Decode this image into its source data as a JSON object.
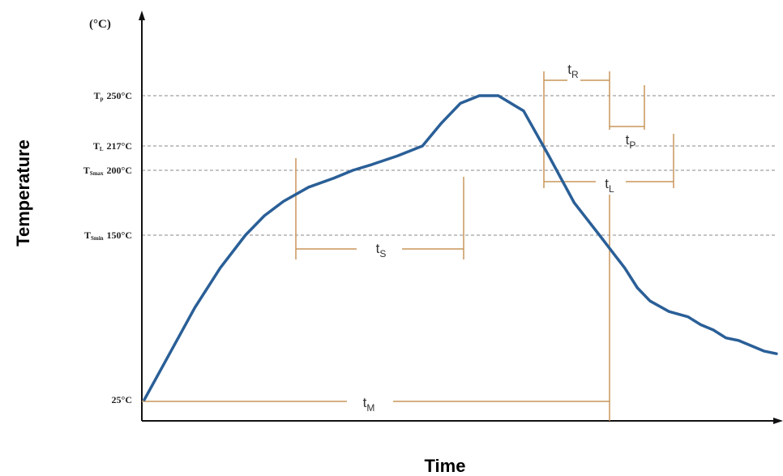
{
  "chart_data": {
    "type": "line",
    "title": "",
    "xlabel": "Time",
    "ylabel": "Temperature",
    "y_unit_label": "(°C)",
    "grid": "dashed reference lines at key temperatures",
    "colors": {
      "curve": "#2a5f97",
      "markers": "#c9955a",
      "grid": "#8a8a8a",
      "axis": "#111111"
    },
    "y_reference_lines": [
      {
        "symbol": "T",
        "sub": "p",
        "value_label": "250°C",
        "value": 250
      },
      {
        "symbol": "T",
        "sub": "L",
        "value_label": "217°C",
        "value": 217
      },
      {
        "symbol": "T",
        "sub": "Smax",
        "value_label": "200°C",
        "value": 200
      },
      {
        "symbol": "T",
        "sub": "Smin",
        "value_label": "150°C",
        "value": 150
      }
    ],
    "y_base_label": "25°C",
    "series": [
      {
        "x": [
          0,
          4,
          8,
          12,
          16,
          19,
          22,
          26,
          30,
          33,
          36,
          40,
          44,
          47,
          50,
          53,
          56,
          60,
          64,
          68,
          72,
          76,
          78,
          80,
          83,
          86,
          88,
          90,
          92,
          94,
          96,
          98,
          100
        ],
        "values": [
          25,
          60,
          95,
          125,
          150,
          165,
          176,
          187,
          194,
          200,
          204,
          210,
          217,
          232,
          245,
          250,
          250,
          240,
          210,
          175,
          150,
          125,
          110,
          100,
          92,
          88,
          82,
          78,
          72,
          70,
          66,
          62,
          60
        ]
      }
    ],
    "annotations": [
      {
        "main": "t",
        "sub": "S"
      },
      {
        "main": "t",
        "sub": "R"
      },
      {
        "main": "t",
        "sub": "P"
      },
      {
        "main": "t",
        "sub": "L"
      },
      {
        "main": "t",
        "sub": "M"
      }
    ]
  }
}
